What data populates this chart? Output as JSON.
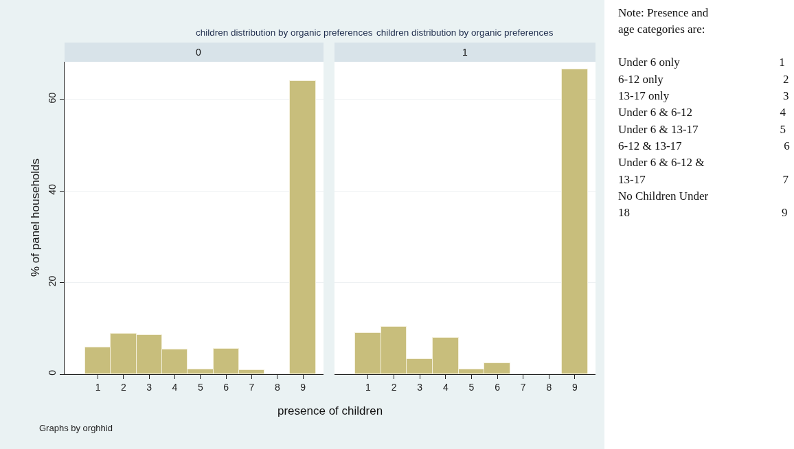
{
  "chart_data": [
    {
      "type": "histogram",
      "title": "children distribution by organic preferences",
      "subtitle": "0",
      "xlabel": "presence of children",
      "ylabel": "% of panel households",
      "color": "#c8be7c",
      "bins": [
        0.5,
        1.5,
        2.5,
        3.5,
        4.5,
        5.5,
        6.5,
        7.5,
        8.5,
        9.5
      ],
      "values": [
        5.9,
        8.8,
        8.6,
        5.4,
        1.0,
        5.6,
        0.9,
        0,
        64.0
      ],
      "xlim": [
        -0.3,
        9.8
      ],
      "xticks": [
        1,
        2,
        3,
        4,
        5,
        6,
        7,
        8,
        9
      ],
      "ylim": [
        0,
        68.2
      ],
      "yticks": [
        0,
        20,
        40,
        60
      ],
      "grid": "y",
      "annotations": [
        "Graphs by orghhid"
      ]
    },
    {
      "type": "histogram",
      "title": "children distribution by organic preferences",
      "subtitle": "1",
      "color": "#c8be7c",
      "bins": [
        0.5,
        1.5,
        2.5,
        3.5,
        4.5,
        5.5,
        6.5,
        7.5,
        8.5,
        9.5
      ],
      "values": [
        9.0,
        10.3,
        3.3,
        8.0,
        1.0,
        2.4,
        0,
        0,
        66.5
      ],
      "xlim": [
        -0.3,
        9.8
      ],
      "xticks": [
        1,
        2,
        3,
        4,
        5,
        6,
        7,
        8,
        9
      ],
      "ylim": [
        0,
        68.2
      ],
      "yticks": [
        0,
        20,
        40,
        60
      ],
      "grid": "y",
      "tick_labels": "x"
    },
    {
      "type": "other",
      "annotations": [
        "Note: Presence and age categories are:",
        "Under 6 only 1",
        "6-12 only 2",
        "13-17 only 3",
        "Under 6 & 6-12 4",
        "Under 6 & 13-17 5",
        "6-12 & 13-17 6",
        "Under 6 & 6-12 & 13-17 7",
        "No Children Under 18 9"
      ]
    }
  ]
}
